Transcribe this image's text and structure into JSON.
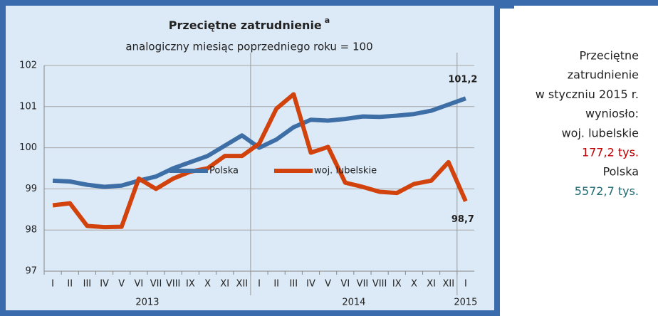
{
  "chart_data": {
    "type": "line",
    "title": "Przeciętne zatrudnienie",
    "title_superscript": "a",
    "subtitle": "analogiczny miesiąc poprzedniego roku = 100",
    "categories": [
      "I",
      "II",
      "III",
      "IV",
      "V",
      "VI",
      "VII",
      "VIII",
      "IX",
      "X",
      "XI",
      "XII",
      "I",
      "II",
      "III",
      "IV",
      "V",
      "VI",
      "VII",
      "VIII",
      "IX",
      "X",
      "XI",
      "XII",
      "I"
    ],
    "years": [
      "2013",
      "2014",
      "2015"
    ],
    "series": [
      {
        "name": "Polska",
        "color": "#3e6ea6",
        "label_color": "#1f4e79",
        "values": [
          99.2,
          99.18,
          99.1,
          99.05,
          99.08,
          99.2,
          99.3,
          99.5,
          99.65,
          99.8,
          100.05,
          100.3,
          100.0,
          100.2,
          100.5,
          100.68,
          100.66,
          100.7,
          100.76,
          100.75,
          100.78,
          100.82,
          100.9,
          101.05,
          101.2
        ],
        "value_labels": [
          null,
          null,
          null,
          null,
          null,
          null,
          null,
          null,
          null,
          null,
          null,
          null,
          null,
          null,
          null,
          null,
          null,
          null,
          null,
          null,
          null,
          null,
          null,
          null,
          "101,2"
        ]
      },
      {
        "name": "woj. lubelskie",
        "color": "#d2420c",
        "label_color": "#c00000",
        "values": [
          98.6,
          98.65,
          98.1,
          98.07,
          98.08,
          99.25,
          99.0,
          99.25,
          99.42,
          99.5,
          99.8,
          99.8,
          100.1,
          100.95,
          101.3,
          99.88,
          100.02,
          99.15,
          99.05,
          98.93,
          98.9,
          99.12,
          99.2,
          99.65,
          98.7
        ],
        "value_labels": [
          null,
          null,
          null,
          null,
          null,
          null,
          null,
          null,
          null,
          null,
          null,
          null,
          null,
          null,
          null,
          null,
          null,
          null,
          null,
          null,
          null,
          null,
          null,
          null,
          "98,7"
        ]
      }
    ],
    "ylim": [
      97,
      102
    ],
    "yticks": [
      97,
      98,
      99,
      100,
      101,
      102
    ],
    "grid": true
  },
  "side_panel": {
    "lines": [
      "Przeciętne",
      "zatrudnienie",
      "w styczniu 2015 r.",
      "wyniosło:",
      "woj. lubelskie",
      "177,2 tys.",
      "Polska",
      "5572,7 tys."
    ]
  }
}
